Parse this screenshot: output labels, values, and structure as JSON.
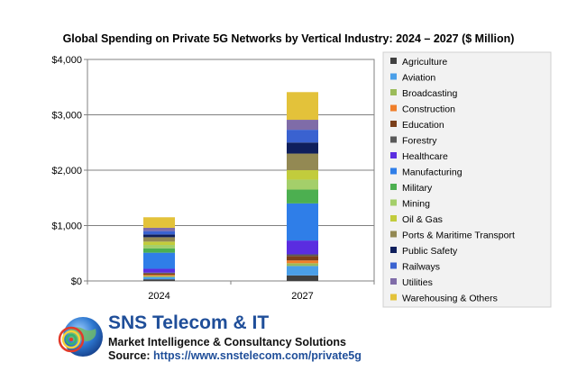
{
  "chart_data": {
    "type": "bar",
    "stacked": true,
    "title": "Global Spending on Private 5G Networks by Vertical Industry: 2024 – 2027 ($ Million)",
    "categories": [
      "2024",
      "2027"
    ],
    "ylim": [
      0,
      4000
    ],
    "yticks": [
      0,
      1000,
      2000,
      3000,
      4000
    ],
    "ytick_labels": [
      "$0",
      "$1,000",
      "$2,000",
      "$3,000",
      "$4,000"
    ],
    "grid": true,
    "legend_position": "right",
    "series": [
      {
        "name": "Agriculture",
        "color": "#404040",
        "values": [
          30,
          100
        ]
      },
      {
        "name": "Aviation",
        "color": "#4a9fe8",
        "values": [
          40,
          170
        ]
      },
      {
        "name": "Broadcasting",
        "color": "#9bbb59",
        "values": [
          20,
          50
        ]
      },
      {
        "name": "Construction",
        "color": "#f07f2a",
        "values": [
          20,
          50
        ]
      },
      {
        "name": "Education",
        "color": "#7b3f1a",
        "values": [
          25,
          80
        ]
      },
      {
        "name": "Forestry",
        "color": "#595959",
        "values": [
          15,
          30
        ]
      },
      {
        "name": "Healthcare",
        "color": "#5a2de0",
        "values": [
          70,
          250
        ]
      },
      {
        "name": "Manufacturing",
        "color": "#2f7ee8",
        "values": [
          290,
          670
        ]
      },
      {
        "name": "Military",
        "color": "#4caf50",
        "values": [
          80,
          250
        ]
      },
      {
        "name": "Mining",
        "color": "#a4cf6a",
        "values": [
          60,
          180
        ]
      },
      {
        "name": "Oil & Gas",
        "color": "#c2cc3c",
        "values": [
          60,
          170
        ]
      },
      {
        "name": "Ports & Maritime Transport",
        "color": "#938953",
        "values": [
          80,
          300
        ]
      },
      {
        "name": "Public Safety",
        "color": "#0f1f5c",
        "values": [
          50,
          200
        ]
      },
      {
        "name": "Railways",
        "color": "#3a62d0",
        "values": [
          60,
          230
        ]
      },
      {
        "name": "Utilities",
        "color": "#7f6ca8",
        "values": [
          60,
          180
        ]
      },
      {
        "name": "Warehousing & Others",
        "color": "#e3c23a",
        "values": [
          190,
          500
        ]
      }
    ]
  },
  "brand": {
    "name": "SNS Telecom & IT",
    "tagline": "Market Intelligence & Consultancy Solutions",
    "source_label": "Source:",
    "source_url": "https://www.snstelecom.com/private5g"
  }
}
